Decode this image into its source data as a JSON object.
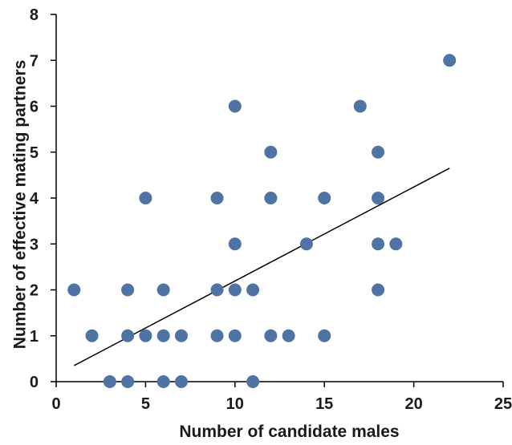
{
  "chart_data": {
    "type": "scatter",
    "title": "",
    "xlabel": "Number of candidate males",
    "ylabel": "Number of effective mating partners",
    "xlim": [
      0,
      25
    ],
    "ylim": [
      0,
      8
    ],
    "xticks": [
      0,
      5,
      10,
      15,
      20,
      25
    ],
    "yticks": [
      0,
      1,
      2,
      3,
      4,
      5,
      6,
      7,
      8
    ],
    "grid": false,
    "legend": "none",
    "colors": {
      "marker": "#4f73a3",
      "trendline": "#000000",
      "axis": "#000000",
      "text": "#1a1a1a"
    },
    "series": [
      {
        "points": [
          {
            "x": 1,
            "y": 2
          },
          {
            "x": 2,
            "y": 1
          },
          {
            "x": 3,
            "y": 0
          },
          {
            "x": 4,
            "y": 0
          },
          {
            "x": 4,
            "y": 1
          },
          {
            "x": 4,
            "y": 2
          },
          {
            "x": 5,
            "y": 1
          },
          {
            "x": 5,
            "y": 4
          },
          {
            "x": 6,
            "y": 0
          },
          {
            "x": 6,
            "y": 1
          },
          {
            "x": 6,
            "y": 2
          },
          {
            "x": 7,
            "y": 0
          },
          {
            "x": 7,
            "y": 1
          },
          {
            "x": 9,
            "y": 1
          },
          {
            "x": 9,
            "y": 2
          },
          {
            "x": 9,
            "y": 4
          },
          {
            "x": 10,
            "y": 1
          },
          {
            "x": 10,
            "y": 2
          },
          {
            "x": 10,
            "y": 3
          },
          {
            "x": 10,
            "y": 6
          },
          {
            "x": 11,
            "y": 0
          },
          {
            "x": 11,
            "y": 2
          },
          {
            "x": 12,
            "y": 1
          },
          {
            "x": 12,
            "y": 4
          },
          {
            "x": 12,
            "y": 5
          },
          {
            "x": 13,
            "y": 1
          },
          {
            "x": 14,
            "y": 3
          },
          {
            "x": 15,
            "y": 1
          },
          {
            "x": 15,
            "y": 4
          },
          {
            "x": 17,
            "y": 6
          },
          {
            "x": 18,
            "y": 2
          },
          {
            "x": 18,
            "y": 3
          },
          {
            "x": 18,
            "y": 4
          },
          {
            "x": 18,
            "y": 5
          },
          {
            "x": 19,
            "y": 3
          },
          {
            "x": 22,
            "y": 7
          }
        ]
      }
    ],
    "trendline": {
      "type": "linear",
      "start": {
        "x": 1,
        "y": 0.35
      },
      "end": {
        "x": 22,
        "y": 4.65
      }
    }
  }
}
